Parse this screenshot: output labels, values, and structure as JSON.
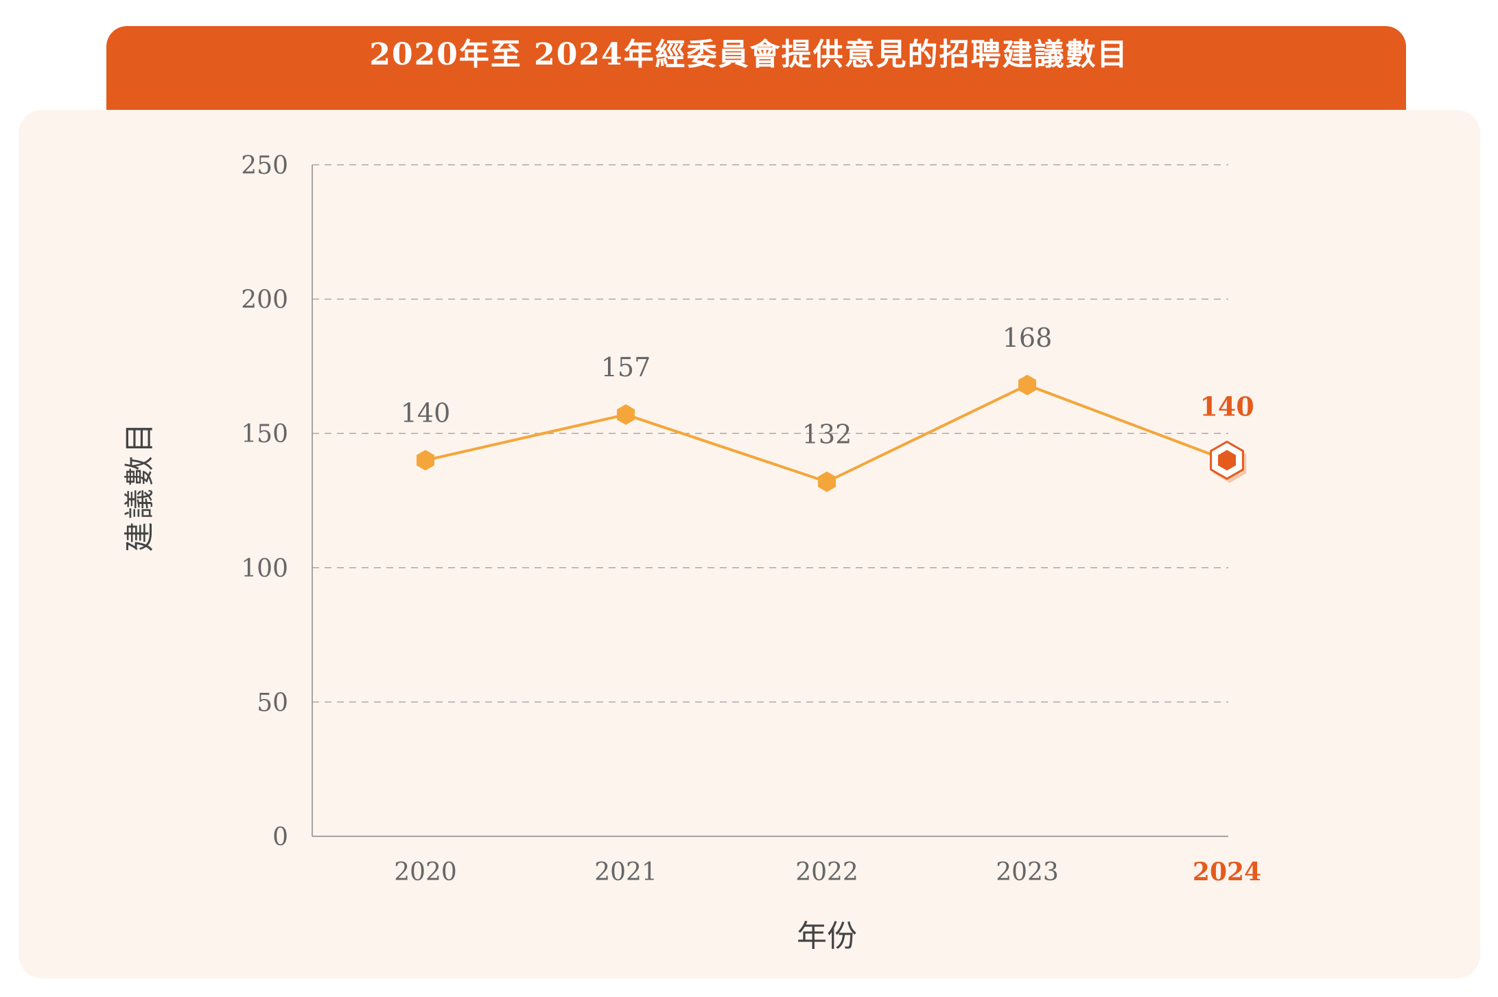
{
  "title": "2020年至 2024年經委員會提供意見的招聘建議數目",
  "colors": {
    "accent": "#e45b1e",
    "line": "#f4a63a",
    "panel_bg": "#fdf4ee",
    "text": "#666666",
    "grid": "#a9a9a9"
  },
  "chart_data": {
    "type": "line",
    "title": "2020年至 2024年經委員會提供意見的招聘建議數目",
    "xlabel": "年份",
    "ylabel": "建議數目",
    "categories": [
      "2020",
      "2021",
      "2022",
      "2023",
      "2024"
    ],
    "series": [
      {
        "values": [
          140,
          157,
          132,
          168,
          140
        ]
      }
    ],
    "ylim": [
      0,
      250
    ],
    "yticks": [
      0,
      50,
      100,
      150,
      200,
      250
    ],
    "grid": true,
    "highlight_category": "2024"
  }
}
